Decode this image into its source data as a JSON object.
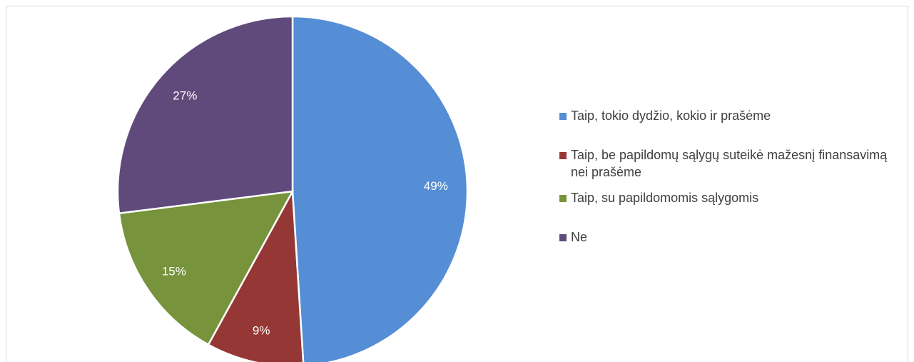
{
  "chart_data": {
    "type": "pie",
    "categories": [
      "Taip, tokio dydžio, kokio ir prašėme",
      "Taip, be papildomų sąlygų suteikė mažesnį finansavimą nei prašėme",
      "Taip, su papildomomis sąlygomis",
      "Ne"
    ],
    "values": [
      49,
      9,
      15,
      27
    ],
    "value_labels": [
      "49%",
      "9%",
      "15%",
      "27%"
    ],
    "colors": [
      "#558ed5",
      "#953735",
      "#77933c",
      "#604a7b"
    ],
    "legend": "right"
  }
}
